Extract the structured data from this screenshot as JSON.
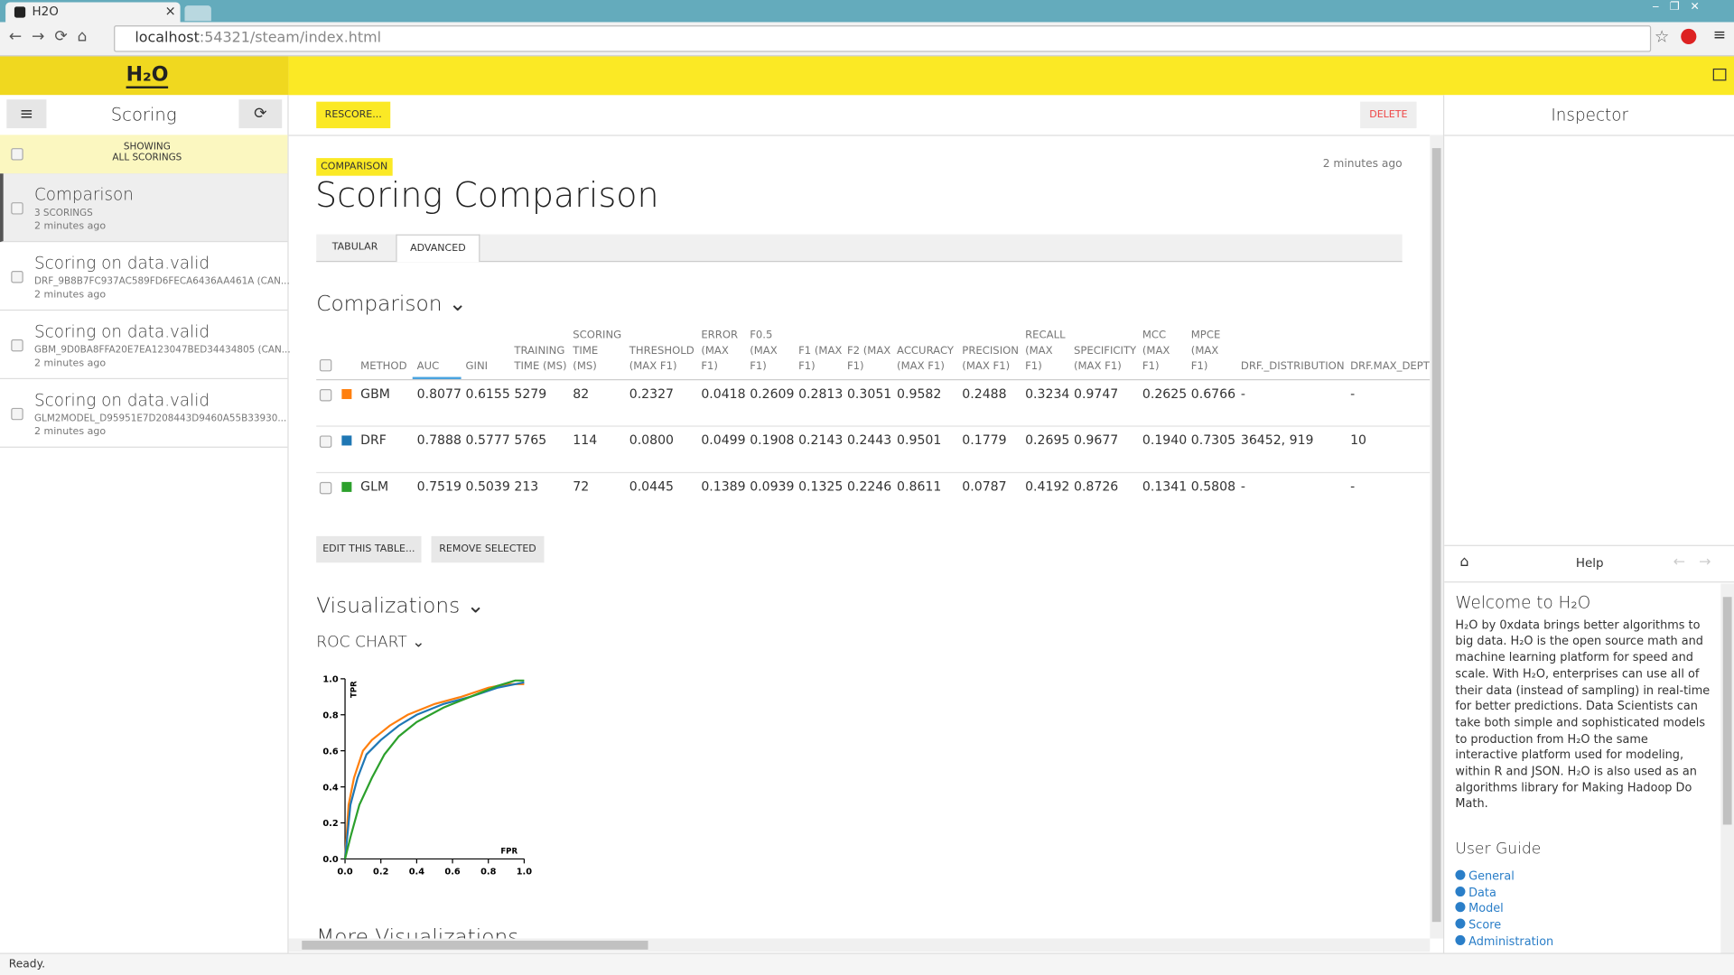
{
  "browser": {
    "tab_title": "H2O",
    "url_host": "localhost",
    "url_path": ":54321/steam/index.html",
    "status": "Ready."
  },
  "header": {
    "logo": "H₂O"
  },
  "sidebar": {
    "title": "Scoring",
    "filter": [
      "SHOWING",
      "ALL SCORINGS"
    ],
    "items": [
      {
        "title": "Comparison",
        "subtitle": "3 SCORINGS",
        "time": "2 minutes ago"
      },
      {
        "title": "Scoring on data.valid",
        "subtitle": "DRF_9B8B7FC937AC589FD6FECA6436AA461A (CAN...",
        "time": "2 minutes ago"
      },
      {
        "title": "Scoring on data.valid",
        "subtitle": "GBM_9D0BA8FFA20E7EA123047BED34434805 (CAN...",
        "time": "2 minutes ago"
      },
      {
        "title": "Scoring on data.valid",
        "subtitle": "GLM2MODEL_D95951E7D208443D9460A55B33930...",
        "time": "2 minutes ago"
      }
    ]
  },
  "toolbar": {
    "rescore": "RESCORE...",
    "delete": "DELETE"
  },
  "main": {
    "badge": "COMPARISON",
    "time": "2 minutes ago",
    "title": "Scoring Comparison",
    "tabs": [
      "TABULAR",
      "ADVANCED"
    ],
    "section": "Comparison",
    "buttons": [
      "EDIT THIS TABLE...",
      "REMOVE SELECTED"
    ],
    "visualizations": "Visualizations",
    "more": "More Visualizations"
  },
  "table": {
    "columns": [
      "METHOD",
      "AUC",
      "GINI",
      "TRAINING TIME (MS)",
      "SCORING TIME (MS)",
      "THRESHOLD (MAX F1)",
      "ERROR (MAX F1)",
      "F0.5 (MAX F1)",
      "F1 (MAX F1)",
      "F2 (MAX F1)",
      "ACCURACY (MAX F1)",
      "PRECISION (MAX F1)",
      "RECALL (MAX F1)",
      "SPECIFICITY (MAX F1)",
      "MCC (MAX F1)",
      "MPCE (MAX F1)",
      "DRF._DISTRIBUTION",
      "DRF.MAX_DEPTH"
    ],
    "rows": [
      {
        "method": "GBM",
        "color": "#ff7f0e",
        "cells": [
          "0.8077",
          "0.6155",
          "5279",
          "82",
          "0.2327",
          "0.0418",
          "0.2609",
          "0.2813",
          "0.3051",
          "0.9582",
          "0.2488",
          "0.3234",
          "0.9747",
          "0.2625",
          "0.6766",
          "-",
          "-"
        ]
      },
      {
        "method": "DRF",
        "color": "#1f77b4",
        "cells": [
          "0.7888",
          "0.5777",
          "5765",
          "114",
          "0.0800",
          "0.0499",
          "0.1908",
          "0.2143",
          "0.2443",
          "0.9501",
          "0.1779",
          "0.2695",
          "0.9677",
          "0.1940",
          "0.7305",
          "36452, 919",
          "10"
        ]
      },
      {
        "method": "GLM",
        "color": "#2ca02c",
        "cells": [
          "0.7519",
          "0.5039",
          "213",
          "72",
          "0.0445",
          "0.1389",
          "0.0939",
          "0.1325",
          "0.2246",
          "0.8611",
          "0.0787",
          "0.4192",
          "0.8726",
          "0.1341",
          "0.5808",
          "-",
          "-"
        ]
      }
    ]
  },
  "chart_data": {
    "type": "line",
    "title": "ROC CHART",
    "xlabel": "FPR",
    "ylabel": "TPR",
    "xlim": [
      0,
      1
    ],
    "ylim": [
      0,
      1
    ],
    "xticks": [
      {
        "value": 0,
        "label": "0.0"
      },
      {
        "value": 0.2,
        "label": "0.2"
      },
      {
        "value": 0.4,
        "label": "0.4"
      },
      {
        "value": 0.6,
        "label": "0.6"
      },
      {
        "value": 0.8,
        "label": "0.8"
      },
      {
        "value": 1,
        "label": "1.0"
      }
    ],
    "yticks": [
      {
        "value": 0,
        "label": "0.0"
      },
      {
        "value": 0.2,
        "label": "0.2"
      },
      {
        "value": 0.4,
        "label": "0.4"
      },
      {
        "value": 0.6,
        "label": "0.6"
      },
      {
        "value": 0.8,
        "label": "0.8"
      },
      {
        "value": 1,
        "label": "1.0"
      }
    ],
    "series": [
      {
        "name": "GBM",
        "color": "#ff7f0e",
        "x": [
          0,
          0.02,
          0.05,
          0.1,
          0.15,
          0.25,
          0.35,
          0.5,
          0.65,
          0.8,
          0.9,
          1
        ],
        "values": [
          0,
          0.3,
          0.45,
          0.6,
          0.66,
          0.74,
          0.8,
          0.86,
          0.9,
          0.95,
          0.97,
          0.97
        ]
      },
      {
        "name": "DRF",
        "color": "#1f77b4",
        "x": [
          0,
          0.03,
          0.07,
          0.12,
          0.2,
          0.3,
          0.4,
          0.55,
          0.7,
          0.85,
          1
        ],
        "values": [
          0,
          0.3,
          0.45,
          0.58,
          0.66,
          0.74,
          0.8,
          0.86,
          0.9,
          0.95,
          0.98
        ]
      },
      {
        "name": "GLM",
        "color": "#2ca02c",
        "x": [
          0,
          0.03,
          0.08,
          0.15,
          0.22,
          0.3,
          0.4,
          0.55,
          0.7,
          0.85,
          0.95,
          1
        ],
        "values": [
          0,
          0.12,
          0.3,
          0.45,
          0.58,
          0.68,
          0.76,
          0.84,
          0.9,
          0.96,
          0.99,
          0.99
        ]
      }
    ]
  },
  "inspector": {
    "title": "Inspector",
    "help_title": "Help",
    "welcome": "Welcome to H₂O",
    "text": "H₂O by 0xdata brings better algorithms to big data. H₂O is the open source math and machine learning platform for speed and scale. With H₂O, enterprises can use all of their data (instead of sampling) in real-time for better predictions. Data Scientists can take both simple and sophisticated models to production from H₂O the same interactive platform used for modeling, within R and JSON. H₂O is also used as an algorithms library for Making Hadoop Do Math.",
    "guide_title": "User Guide",
    "links": [
      "General",
      "Data",
      "Model",
      "Score",
      "Administration"
    ]
  }
}
